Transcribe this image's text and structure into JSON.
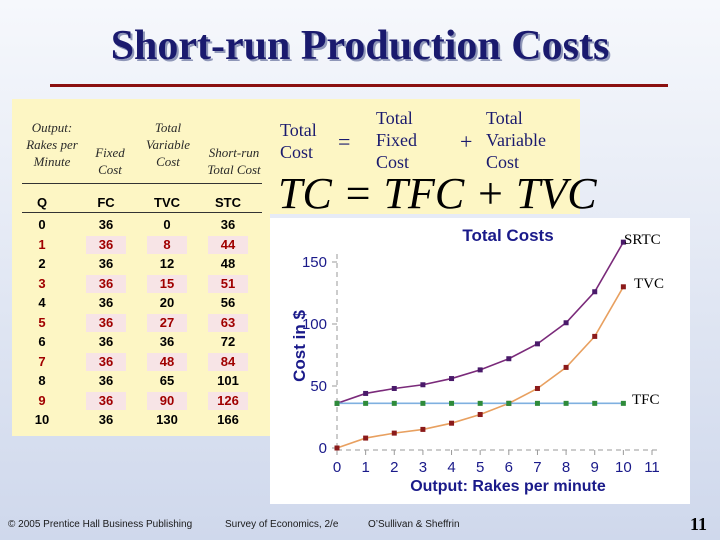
{
  "slide": {
    "title": "Short-run Production Costs",
    "page_number": "11"
  },
  "table": {
    "headers": [
      [
        "Output:",
        "Rakes per",
        "Minute"
      ],
      [
        "Fixed",
        "Cost"
      ],
      [
        "Total",
        "Variable",
        "Cost"
      ],
      [
        "Short-run",
        "Total Cost"
      ]
    ],
    "columns": [
      "Q",
      "FC",
      "TVC",
      "STC"
    ],
    "rows": [
      [
        "0",
        "36",
        "0",
        "36"
      ],
      [
        "1",
        "36",
        "8",
        "44"
      ],
      [
        "2",
        "36",
        "12",
        "48"
      ],
      [
        "3",
        "36",
        "15",
        "51"
      ],
      [
        "4",
        "36",
        "20",
        "56"
      ],
      [
        "5",
        "36",
        "27",
        "63"
      ],
      [
        "6",
        "36",
        "36",
        "72"
      ],
      [
        "7",
        "36",
        "48",
        "84"
      ],
      [
        "8",
        "36",
        "65",
        "101"
      ],
      [
        "9",
        "36",
        "90",
        "126"
      ],
      [
        "10",
        "36",
        "130",
        "166"
      ]
    ],
    "highlighted_rows": [
      1,
      3,
      5,
      7,
      9
    ]
  },
  "equation": {
    "total_cost": [
      "Total",
      "Cost"
    ],
    "equals": "=",
    "total_fixed_cost": [
      "Total",
      "Fixed",
      "Cost"
    ],
    "plus": "+",
    "total_variable_cost": [
      "Total",
      "Variable",
      "Cost"
    ],
    "formula": "TC = TFC + TVC"
  },
  "chart_data": {
    "type": "line",
    "title": "Total Costs",
    "xlabel": "Output:  Rakes per minute",
    "ylabel": "Cost in $",
    "xlim": [
      0,
      11
    ],
    "ylim": [
      0,
      150
    ],
    "x_ticks": [
      0,
      1,
      2,
      3,
      4,
      5,
      6,
      7,
      8,
      9,
      10,
      11
    ],
    "y_ticks": [
      0,
      50,
      100,
      150
    ],
    "x": [
      0,
      1,
      2,
      3,
      4,
      5,
      6,
      7,
      8,
      9,
      10
    ],
    "series": [
      {
        "name": "SRTC",
        "values": [
          36,
          44,
          48,
          51,
          56,
          63,
          72,
          84,
          101,
          126,
          166
        ],
        "color": "#7a2a7a"
      },
      {
        "name": "TVC",
        "values": [
          0,
          8,
          12,
          15,
          20,
          27,
          36,
          48,
          65,
          90,
          130
        ],
        "color": "#e8a060"
      },
      {
        "name": "TFC",
        "values": [
          36,
          36,
          36,
          36,
          36,
          36,
          36,
          36,
          36,
          36,
          36
        ],
        "color": "#7fb0e0"
      }
    ],
    "marker_colors": {
      "SRTC": "#4a1a6a",
      "TVC": "#8b1a1a",
      "TFC": "#2e8b3a"
    },
    "grid": false
  },
  "footer": {
    "publisher": "© 2005 Prentice Hall Business Publishing",
    "book": "Survey of Economics, 2/e",
    "authors": "O’Sullivan & Sheffrin"
  }
}
